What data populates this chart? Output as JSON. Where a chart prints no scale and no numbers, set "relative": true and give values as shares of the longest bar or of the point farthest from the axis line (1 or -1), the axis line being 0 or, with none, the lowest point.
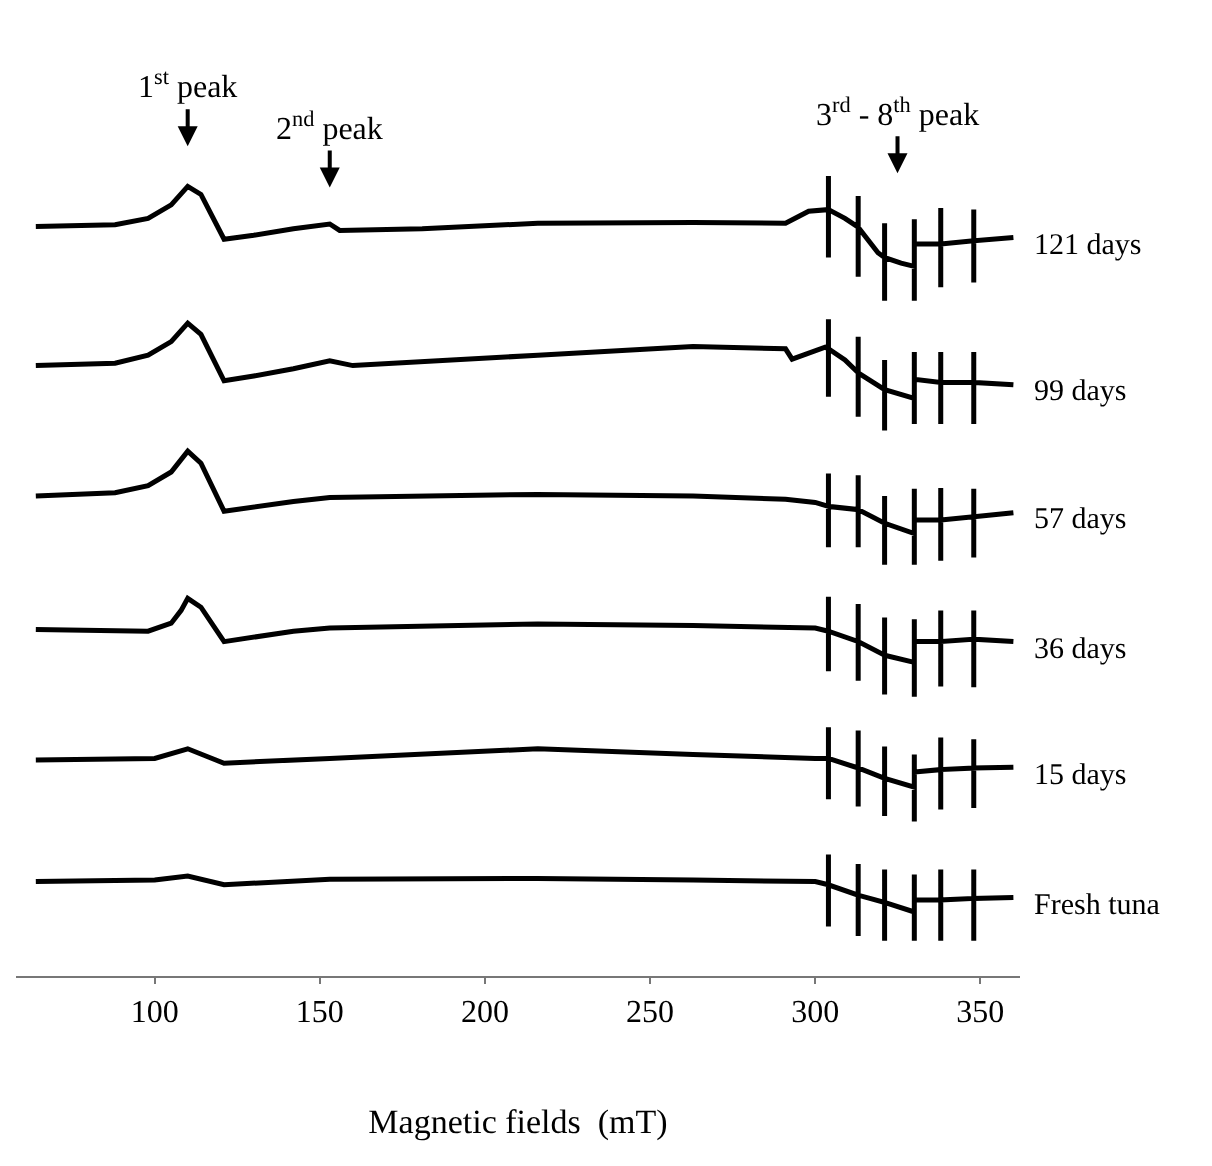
{
  "chart_data": {
    "type": "line",
    "relative": true,
    "xlabel": "Magnetic fields  (mT)",
    "xlim": [
      58,
      362
    ],
    "xticks": [
      100,
      150,
      200,
      250,
      300,
      350
    ],
    "grid": false,
    "legend": false,
    "marker": "none",
    "line_style": "solid",
    "annotations": [
      "1$^{st}$ peak",
      "2$^{nd}$ peak",
      "3$^{rd}$ - 8$^{th}$ peak"
    ],
    "series": [
      {
        "name": "121 days",
        "color": "#000000",
        "x": [
          64,
          88,
          98,
          105,
          110,
          114,
          121,
          130,
          142,
          153,
          156,
          181,
          216,
          263,
          291,
          298,
          304,
          304,
          304,
          304,
          309,
          313,
          313,
          313,
          313,
          319,
          321,
          321,
          321,
          321,
          326,
          330,
          330,
          330,
          330,
          338,
          338,
          338,
          338,
          348,
          348,
          348,
          348,
          360
        ],
        "values": [
          0.937,
          0.939,
          0.947,
          0.964,
          0.987,
          0.977,
          0.921,
          0.926,
          0.934,
          0.94,
          0.932,
          0.934,
          0.941,
          0.942,
          0.941,
          0.956,
          0.958,
          1.0,
          0.898,
          0.958,
          0.947,
          0.936,
          0.975,
          0.874,
          0.936,
          0.904,
          0.898,
          0.941,
          0.844,
          0.898,
          0.891,
          0.887,
          0.946,
          0.844,
          0.915,
          0.915,
          0.96,
          0.861,
          0.915,
          0.919,
          0.958,
          0.867,
          0.919,
          0.923
        ]
      },
      {
        "name": "99 days",
        "color": "#000000",
        "x": [
          64,
          88,
          98,
          105,
          110,
          114,
          121,
          130,
          142,
          153,
          160,
          216,
          263,
          291,
          293,
          303,
          304,
          304,
          304,
          304,
          309,
          313,
          313,
          313,
          313,
          321,
          321,
          321,
          321,
          330,
          330,
          330,
          330,
          338,
          338,
          338,
          338,
          348,
          348,
          348,
          348,
          360
        ],
        "values": [
          0.763,
          0.766,
          0.776,
          0.793,
          0.816,
          0.802,
          0.744,
          0.75,
          0.759,
          0.769,
          0.763,
          0.776,
          0.787,
          0.784,
          0.771,
          0.786,
          0.784,
          0.821,
          0.724,
          0.784,
          0.77,
          0.754,
          0.799,
          0.699,
          0.754,
          0.733,
          0.77,
          0.682,
          0.733,
          0.722,
          0.78,
          0.69,
          0.746,
          0.742,
          0.78,
          0.69,
          0.742,
          0.742,
          0.78,
          0.69,
          0.742,
          0.739
        ]
      },
      {
        "name": "57 days",
        "color": "#000000",
        "x": [
          64,
          88,
          98,
          105,
          110,
          114,
          121,
          142,
          153,
          216,
          263,
          291,
          300,
          304,
          304,
          304,
          304,
          313,
          313,
          313,
          313,
          321,
          321,
          321,
          321,
          330,
          330,
          330,
          330,
          338,
          338,
          338,
          338,
          348,
          348,
          348,
          348,
          360
        ],
        "values": [
          0.6,
          0.604,
          0.613,
          0.63,
          0.656,
          0.641,
          0.581,
          0.593,
          0.598,
          0.602,
          0.6,
          0.596,
          0.592,
          0.587,
          0.628,
          0.536,
          0.587,
          0.583,
          0.626,
          0.536,
          0.583,
          0.566,
          0.6,
          0.514,
          0.566,
          0.553,
          0.609,
          0.514,
          0.57,
          0.57,
          0.61,
          0.519,
          0.57,
          0.574,
          0.609,
          0.523,
          0.574,
          0.579
        ]
      },
      {
        "name": "36 days",
        "color": "#000000",
        "x": [
          64,
          98,
          105,
          108,
          110,
          114,
          121,
          142,
          153,
          216,
          263,
          300,
          304,
          304,
          304,
          304,
          313,
          313,
          313,
          313,
          321,
          321,
          321,
          321,
          330,
          330,
          330,
          330,
          338,
          338,
          338,
          338,
          348,
          348,
          348,
          348,
          360
        ],
        "values": [
          0.433,
          0.431,
          0.441,
          0.457,
          0.472,
          0.461,
          0.418,
          0.431,
          0.435,
          0.44,
          0.438,
          0.435,
          0.431,
          0.474,
          0.381,
          0.431,
          0.418,
          0.465,
          0.369,
          0.418,
          0.401,
          0.448,
          0.352,
          0.401,
          0.392,
          0.446,
          0.349,
          0.418,
          0.418,
          0.457,
          0.362,
          0.418,
          0.421,
          0.457,
          0.361,
          0.421,
          0.418
        ]
      },
      {
        "name": "15 days",
        "color": "#000000",
        "x": [
          64,
          100,
          110,
          121,
          153,
          216,
          263,
          300,
          304,
          304,
          304,
          304,
          313,
          313,
          313,
          313,
          321,
          321,
          321,
          321,
          330,
          330,
          330,
          330,
          338,
          338,
          338,
          338,
          348,
          348,
          348,
          348,
          360
        ],
        "values": [
          0.27,
          0.272,
          0.284,
          0.266,
          0.272,
          0.284,
          0.277,
          0.272,
          0.272,
          0.311,
          0.221,
          0.272,
          0.26,
          0.307,
          0.212,
          0.26,
          0.247,
          0.287,
          0.2,
          0.247,
          0.236,
          0.277,
          0.193,
          0.255,
          0.258,
          0.298,
          0.208,
          0.258,
          0.26,
          0.296,
          0.21,
          0.26,
          0.261
        ]
      },
      {
        "name": "Fresh tuna",
        "color": "#000000",
        "x": [
          64,
          100,
          110,
          121,
          153,
          216,
          263,
          300,
          304,
          304,
          304,
          304,
          313,
          313,
          313,
          313,
          321,
          321,
          321,
          321,
          330,
          330,
          330,
          330,
          338,
          338,
          338,
          338,
          348,
          348,
          348,
          348,
          360
        ],
        "values": [
          0.118,
          0.12,
          0.125,
          0.114,
          0.121,
          0.122,
          0.12,
          0.118,
          0.114,
          0.152,
          0.062,
          0.114,
          0.101,
          0.14,
          0.05,
          0.101,
          0.092,
          0.133,
          0.044,
          0.092,
          0.08,
          0.127,
          0.044,
          0.095,
          0.095,
          0.133,
          0.044,
          0.095,
          0.097,
          0.133,
          0.044,
          0.097,
          0.098
        ]
      }
    ]
  }
}
